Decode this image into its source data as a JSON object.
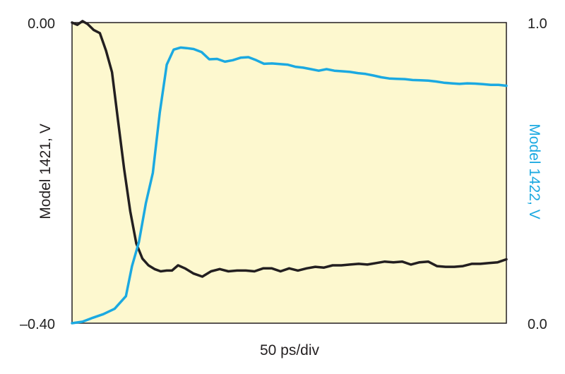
{
  "chart_data": {
    "type": "line",
    "title": "",
    "xlabel": "50 ps/div",
    "y_left": {
      "label": "Model 1421, V",
      "range": [
        -0.4,
        0.0
      ],
      "tick_labels": [
        "0.00",
        "–0.40"
      ],
      "color": "#231f20"
    },
    "y_right": {
      "label": "Model 1422, V",
      "range": [
        0.0,
        1.0
      ],
      "tick_labels": [
        "1.0",
        "0.0"
      ],
      "color": "#1ba9e1"
    },
    "plot_background": "#fdf8cf",
    "grid": false,
    "series": [
      {
        "axis": "left",
        "color": "#231f20",
        "x": [
          0,
          1.2,
          2.4,
          3.6,
          5.0,
          6.4,
          7.8,
          9.2,
          10.6,
          12.0,
          13.4,
          14.8,
          16.2,
          17.6,
          19.0,
          20.4,
          21.8,
          23.0,
          24.4,
          26.0,
          28.0,
          30.0,
          32.0,
          34.0,
          36.0,
          38.0,
          40.0,
          42.0,
          44.0,
          46.0,
          48.0,
          50.0,
          52.0,
          54.0,
          56.0,
          58.0,
          60.0,
          62.0,
          64.0,
          66.0,
          68.0,
          70.0,
          72.0,
          74.0,
          76.0,
          78.0,
          80.0,
          82.0,
          84.0,
          86.0,
          88.0,
          90.0,
          92.0,
          94.0,
          96.0,
          98.0,
          100.0
        ],
        "y": [
          0.0,
          -0.003,
          0.002,
          -0.002,
          -0.01,
          -0.014,
          -0.037,
          -0.066,
          -0.131,
          -0.195,
          -0.251,
          -0.294,
          -0.314,
          -0.323,
          -0.328,
          -0.331,
          -0.33,
          -0.33,
          -0.323,
          -0.327,
          -0.334,
          -0.338,
          -0.331,
          -0.328,
          -0.331,
          -0.33,
          -0.33,
          -0.331,
          -0.327,
          -0.327,
          -0.331,
          -0.327,
          -0.33,
          -0.327,
          -0.325,
          -0.326,
          -0.323,
          -0.323,
          -0.322,
          -0.321,
          -0.322,
          -0.32,
          -0.318,
          -0.319,
          -0.318,
          -0.322,
          -0.319,
          -0.318,
          -0.324,
          -0.325,
          -0.325,
          -0.324,
          -0.321,
          -0.321,
          -0.32,
          -0.319,
          -0.315
        ]
      },
      {
        "axis": "right",
        "color": "#1ba9e1",
        "x": [
          0,
          2.4,
          4.8,
          7.2,
          9.8,
          12.4,
          13.8,
          15.4,
          17.0,
          18.6,
          20.2,
          21.8,
          23.4,
          25.0,
          26.4,
          28.0,
          29.8,
          31.6,
          33.4,
          35.2,
          37.0,
          38.8,
          40.6,
          42.4,
          44.2,
          46.0,
          47.8,
          49.6,
          51.4,
          53.2,
          55.0,
          56.8,
          58.6,
          60.4,
          62.2,
          64.0,
          65.8,
          67.6,
          69.4,
          71.2,
          73.0,
          74.8,
          76.6,
          78.4,
          80.2,
          82.0,
          83.8,
          85.6,
          87.4,
          89.2,
          91.0,
          92.8,
          94.6,
          96.4,
          98.2,
          100.0
        ],
        "y": [
          0.0,
          0.005,
          0.018,
          0.03,
          0.048,
          0.09,
          0.19,
          0.27,
          0.4,
          0.5,
          0.7,
          0.86,
          0.91,
          0.917,
          0.915,
          0.912,
          0.902,
          0.878,
          0.879,
          0.87,
          0.875,
          0.883,
          0.885,
          0.875,
          0.863,
          0.864,
          0.862,
          0.86,
          0.853,
          0.85,
          0.845,
          0.84,
          0.845,
          0.84,
          0.838,
          0.836,
          0.832,
          0.829,
          0.824,
          0.818,
          0.814,
          0.813,
          0.812,
          0.809,
          0.808,
          0.807,
          0.804,
          0.8,
          0.798,
          0.796,
          0.798,
          0.797,
          0.795,
          0.793,
          0.793,
          0.79
        ]
      }
    ]
  }
}
